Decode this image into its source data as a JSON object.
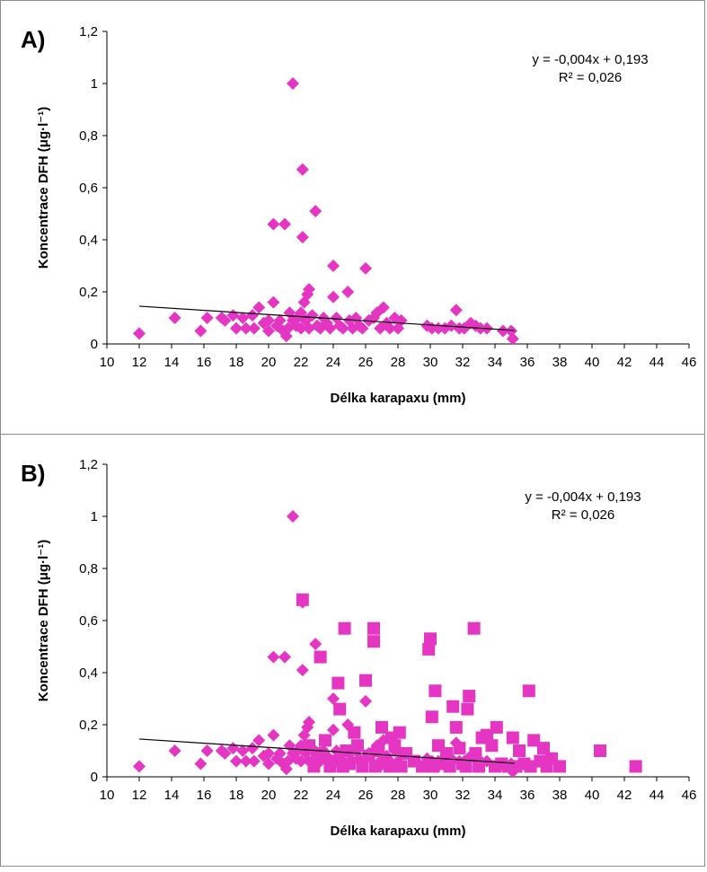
{
  "charts": [
    {
      "panel_label": "A)",
      "equation": "y = -0,004x + 0,193",
      "r2": "R² = 0,026",
      "ylabel": "Koncentrace DFH (μg·l⁻¹)",
      "xlabel": "Délka karapaxu (mm)"
    },
    {
      "panel_label": "B)",
      "equation": "y = -0,004x + 0,193",
      "r2": "R² = 0,026",
      "ylabel": "Koncentrace DFH (μg·l⁻¹)",
      "xlabel": "Délka karapaxu (mm)"
    }
  ],
  "chart_data": [
    {
      "type": "scatter",
      "xlim": [
        10,
        46
      ],
      "ylim": [
        0,
        1.2
      ],
      "xticks": [
        10,
        12,
        14,
        16,
        18,
        20,
        22,
        24,
        26,
        28,
        30,
        32,
        34,
        36,
        38,
        40,
        42,
        44,
        46
      ],
      "yticks": [
        "0",
        "0,2",
        "0,4",
        "0,6",
        "0,8",
        "1",
        "1,2"
      ],
      "ytick_values": [
        0,
        0.2,
        0.4,
        0.6,
        0.8,
        1,
        1.2
      ],
      "series": [
        {
          "marker": "diamond",
          "color": "#E535C3",
          "points": [
            [
              12,
              0.04
            ],
            [
              14.2,
              0.1
            ],
            [
              15.8,
              0.05
            ],
            [
              16.2,
              0.1
            ],
            [
              17.1,
              0.1
            ],
            [
              17.3,
              0.09
            ],
            [
              17.8,
              0.11
            ],
            [
              18,
              0.06
            ],
            [
              18.4,
              0.1
            ],
            [
              18.6,
              0.06
            ],
            [
              19,
              0.11
            ],
            [
              19.1,
              0.06
            ],
            [
              19.4,
              0.14
            ],
            [
              19.7,
              0.08
            ],
            [
              20,
              0.09
            ],
            [
              20,
              0.05
            ],
            [
              20.3,
              0.16
            ],
            [
              20.3,
              0.46
            ],
            [
              20.5,
              0.07
            ],
            [
              20.7,
              0.09
            ],
            [
              20.9,
              0.05
            ],
            [
              21,
              0.46
            ],
            [
              21.1,
              0.03
            ],
            [
              21.2,
              0.06
            ],
            [
              21.3,
              0.12
            ],
            [
              21.5,
              1.0
            ],
            [
              21.5,
              0.09
            ],
            [
              21.7,
              0.07
            ],
            [
              21.8,
              0.1
            ],
            [
              22,
              0.12
            ],
            [
              22,
              0.06
            ],
            [
              22.1,
              0.67
            ],
            [
              22.1,
              0.41
            ],
            [
              22.2,
              0.16
            ],
            [
              22.3,
              0.09
            ],
            [
              22.4,
              0.19
            ],
            [
              22.5,
              0.21
            ],
            [
              22.5,
              0.06
            ],
            [
              22.7,
              0.11
            ],
            [
              22.9,
              0.51
            ],
            [
              23,
              0.07
            ],
            [
              23.2,
              0.06
            ],
            [
              23.4,
              0.1
            ],
            [
              23.6,
              0.08
            ],
            [
              23.8,
              0.06
            ],
            [
              24,
              0.3
            ],
            [
              24,
              0.18
            ],
            [
              24.2,
              0.1
            ],
            [
              24.4,
              0.07
            ],
            [
              24.6,
              0.06
            ],
            [
              24.9,
              0.2
            ],
            [
              25,
              0.09
            ],
            [
              25.2,
              0.06
            ],
            [
              25.4,
              0.1
            ],
            [
              25.6,
              0.07
            ],
            [
              25.8,
              0.06
            ],
            [
              26,
              0.29
            ],
            [
              26.2,
              0.09
            ],
            [
              26.5,
              0.1
            ],
            [
              26.7,
              0.12
            ],
            [
              26.9,
              0.06
            ],
            [
              27.1,
              0.14
            ],
            [
              27.3,
              0.08
            ],
            [
              27.5,
              0.06
            ],
            [
              27.8,
              0.1
            ],
            [
              28,
              0.06
            ],
            [
              28.2,
              0.09
            ],
            [
              29.8,
              0.07
            ],
            [
              30.1,
              0.06
            ],
            [
              30.5,
              0.06
            ],
            [
              30.9,
              0.06
            ],
            [
              31.3,
              0.07
            ],
            [
              31.6,
              0.13
            ],
            [
              31.8,
              0.06
            ],
            [
              32.1,
              0.06
            ],
            [
              32.5,
              0.08
            ],
            [
              32.8,
              0.07
            ],
            [
              33.1,
              0.06
            ],
            [
              33.5,
              0.06
            ],
            [
              34.5,
              0.05
            ],
            [
              35,
              0.05
            ],
            [
              35.1,
              0.02
            ]
          ]
        }
      ],
      "trendline": {
        "x": [
          12,
          35.2
        ],
        "y": [
          0.145,
          0.052
        ]
      }
    },
    {
      "type": "scatter",
      "xlim": [
        10,
        46
      ],
      "ylim": [
        0,
        1.2
      ],
      "xticks": [
        10,
        12,
        14,
        16,
        18,
        20,
        22,
        24,
        26,
        28,
        30,
        32,
        34,
        36,
        38,
        40,
        42,
        44,
        46
      ],
      "yticks": [
        "0",
        "0,2",
        "0,4",
        "0,6",
        "0,8",
        "1",
        "1,2"
      ],
      "ytick_values": [
        0,
        0.2,
        0.4,
        0.6,
        0.8,
        1,
        1.2
      ],
      "series": [
        {
          "marker": "diamond",
          "color": "#E535C3",
          "points": [
            [
              12,
              0.04
            ],
            [
              14.2,
              0.1
            ],
            [
              15.8,
              0.05
            ],
            [
              16.2,
              0.1
            ],
            [
              17.1,
              0.1
            ],
            [
              17.3,
              0.09
            ],
            [
              17.8,
              0.11
            ],
            [
              18,
              0.06
            ],
            [
              18.4,
              0.1
            ],
            [
              18.6,
              0.06
            ],
            [
              19,
              0.11
            ],
            [
              19.1,
              0.06
            ],
            [
              19.4,
              0.14
            ],
            [
              19.7,
              0.08
            ],
            [
              20,
              0.09
            ],
            [
              20,
              0.05
            ],
            [
              20.3,
              0.16
            ],
            [
              20.3,
              0.46
            ],
            [
              20.5,
              0.07
            ],
            [
              20.7,
              0.09
            ],
            [
              20.9,
              0.05
            ],
            [
              21,
              0.46
            ],
            [
              21.1,
              0.03
            ],
            [
              21.2,
              0.06
            ],
            [
              21.3,
              0.12
            ],
            [
              21.5,
              1.0
            ],
            [
              21.5,
              0.09
            ],
            [
              21.7,
              0.07
            ],
            [
              21.8,
              0.1
            ],
            [
              22,
              0.12
            ],
            [
              22,
              0.06
            ],
            [
              22.1,
              0.67
            ],
            [
              22.1,
              0.41
            ],
            [
              22.2,
              0.16
            ],
            [
              22.3,
              0.09
            ],
            [
              22.4,
              0.19
            ],
            [
              22.5,
              0.21
            ],
            [
              22.5,
              0.06
            ],
            [
              22.7,
              0.11
            ],
            [
              22.9,
              0.51
            ],
            [
              23,
              0.07
            ],
            [
              23.2,
              0.06
            ],
            [
              23.4,
              0.1
            ],
            [
              23.6,
              0.08
            ],
            [
              23.8,
              0.06
            ],
            [
              24,
              0.3
            ],
            [
              24,
              0.18
            ],
            [
              24.2,
              0.1
            ],
            [
              24.4,
              0.07
            ],
            [
              24.6,
              0.06
            ],
            [
              24.9,
              0.2
            ],
            [
              25,
              0.09
            ],
            [
              25.2,
              0.06
            ],
            [
              25.4,
              0.1
            ],
            [
              25.6,
              0.07
            ],
            [
              25.8,
              0.06
            ],
            [
              26,
              0.29
            ],
            [
              26.2,
              0.09
            ],
            [
              26.5,
              0.1
            ],
            [
              26.7,
              0.12
            ],
            [
              26.9,
              0.06
            ],
            [
              27.1,
              0.14
            ],
            [
              27.3,
              0.08
            ],
            [
              27.5,
              0.06
            ],
            [
              27.8,
              0.1
            ],
            [
              28,
              0.06
            ],
            [
              28.2,
              0.09
            ],
            [
              29.8,
              0.07
            ],
            [
              30.1,
              0.06
            ],
            [
              30.5,
              0.06
            ],
            [
              30.9,
              0.06
            ],
            [
              31.3,
              0.07
            ],
            [
              31.6,
              0.13
            ],
            [
              31.8,
              0.06
            ],
            [
              32.1,
              0.06
            ],
            [
              32.5,
              0.08
            ],
            [
              32.8,
              0.07
            ],
            [
              33.1,
              0.06
            ],
            [
              33.5,
              0.06
            ],
            [
              34.5,
              0.05
            ],
            [
              35,
              0.05
            ],
            [
              35.1,
              0.02
            ]
          ]
        },
        {
          "marker": "square",
          "color": "#E535C3",
          "points": [
            [
              22.1,
              0.68
            ],
            [
              23.2,
              0.46
            ],
            [
              24.3,
              0.36
            ],
            [
              24.4,
              0.26
            ],
            [
              24.7,
              0.57
            ],
            [
              25.3,
              0.17
            ],
            [
              26,
              0.37
            ],
            [
              26.5,
              0.57
            ],
            [
              26.5,
              0.52
            ],
            [
              27,
              0.19
            ],
            [
              27.6,
              0.15
            ],
            [
              28.1,
              0.17
            ],
            [
              29.9,
              0.49
            ],
            [
              30,
              0.53
            ],
            [
              30.1,
              0.23
            ],
            [
              30.3,
              0.33
            ],
            [
              31.4,
              0.27
            ],
            [
              31.6,
              0.19
            ],
            [
              32.3,
              0.26
            ],
            [
              32.4,
              0.31
            ],
            [
              32.7,
              0.57
            ],
            [
              33.2,
              0.15
            ],
            [
              33.5,
              0.16
            ],
            [
              34.1,
              0.19
            ],
            [
              35.1,
              0.15
            ],
            [
              36.1,
              0.33
            ],
            [
              36.4,
              0.14
            ],
            [
              37,
              0.11
            ],
            [
              37.5,
              0.07
            ],
            [
              38,
              0.04
            ],
            [
              40.5,
              0.1
            ],
            [
              42.7,
              0.04
            ],
            [
              22.5,
              0.12
            ],
            [
              23,
              0.09
            ],
            [
              23.5,
              0.14
            ],
            [
              24,
              0.06
            ],
            [
              24.8,
              0.1
            ],
            [
              25,
              0.05
            ],
            [
              25.5,
              0.12
            ],
            [
              26.2,
              0.08
            ],
            [
              26.8,
              0.1
            ],
            [
              27.2,
              0.05
            ],
            [
              27.8,
              0.12
            ],
            [
              28.5,
              0.09
            ],
            [
              29,
              0.06
            ],
            [
              30.5,
              0.12
            ],
            [
              30.8,
              0.05
            ],
            [
              31,
              0.09
            ],
            [
              31.8,
              0.11
            ],
            [
              32,
              0.05
            ],
            [
              32.8,
              0.09
            ],
            [
              33.8,
              0.12
            ],
            [
              34.4,
              0.05
            ],
            [
              35.5,
              0.1
            ],
            [
              35.8,
              0.05
            ],
            [
              36.8,
              0.06
            ],
            [
              37.2,
              0.04
            ],
            [
              22.8,
              0.04
            ],
            [
              23.8,
              0.04
            ],
            [
              24.6,
              0.04
            ],
            [
              25.8,
              0.04
            ],
            [
              26.6,
              0.04
            ],
            [
              27.5,
              0.04
            ],
            [
              28.2,
              0.04
            ],
            [
              29.5,
              0.04
            ],
            [
              30.2,
              0.04
            ],
            [
              31.2,
              0.04
            ],
            [
              32.2,
              0.04
            ],
            [
              33,
              0.04
            ],
            [
              34,
              0.04
            ],
            [
              34.8,
              0.04
            ],
            [
              35.3,
              0.04
            ],
            [
              36.2,
              0.04
            ]
          ]
        }
      ],
      "trendline": {
        "x": [
          12,
          35.2
        ],
        "y": [
          0.145,
          0.052
        ]
      }
    }
  ]
}
